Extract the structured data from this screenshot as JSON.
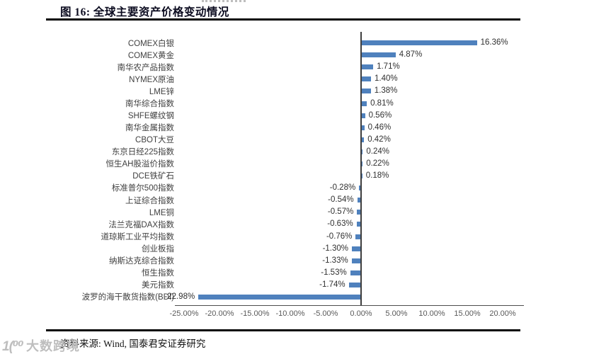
{
  "page": {
    "title": "图 16:  全球主要资产价格变动情况",
    "source": "资料来源: Wind, 国泰君安证券研究",
    "watermark": {
      "logo": "1(⁰⁰",
      "text": "大数跨境"
    }
  },
  "chart_data": {
    "type": "bar",
    "orientation": "horizontal",
    "title": "全球主要资产价格变动情况",
    "categories": [
      "COMEX白银",
      "COMEX黄金",
      "南华农产品指数",
      "NYMEX原油",
      "LME锌",
      "南华综合指数",
      "SHFE螺纹钢",
      "南华金属指数",
      "CBOT大豆",
      "东京日经225指数",
      "恒生AH股溢价指数",
      "DCE铁矿石",
      "标准普尔500指数",
      "上证综合指数",
      "LME铜",
      "法兰克福DAX指数",
      "道琼斯工业平均指数",
      "创业板指",
      "纳斯达克综合指数",
      "恒生指数",
      "美元指数",
      "波罗的海干散货指数(BDI)"
    ],
    "values": [
      16.36,
      4.87,
      1.71,
      1.4,
      1.38,
      0.81,
      0.56,
      0.46,
      0.42,
      0.24,
      0.22,
      0.18,
      -0.28,
      -0.54,
      -0.57,
      -0.63,
      -0.76,
      -1.3,
      -1.33,
      -1.53,
      -1.74,
      -22.98
    ],
    "value_labels": [
      "16.36%",
      "4.87%",
      "1.71%",
      "1.40%",
      "1.38%",
      "0.81%",
      "0.56%",
      "0.46%",
      "0.42%",
      "0.24%",
      "0.22%",
      "0.18%",
      "-0.28%",
      "-0.54%",
      "-0.57%",
      "-0.63%",
      "-0.76%",
      "-1.30%",
      "-1.33%",
      "-1.53%",
      "-1.74%",
      "-22.98%"
    ],
    "xlim": [
      -25,
      20
    ],
    "xticks": [
      -25,
      -20,
      -15,
      -10,
      -5,
      0,
      5,
      10,
      15,
      20
    ],
    "xtick_labels": [
      "-25.00%",
      "-20.00%",
      "-15.00%",
      "-10.00%",
      "-5.00%",
      "0.00%",
      "5.00%",
      "10.00%",
      "15.00%",
      "20.00%"
    ],
    "bar_color": "#4f81bd",
    "grid": false,
    "legend": false
  }
}
